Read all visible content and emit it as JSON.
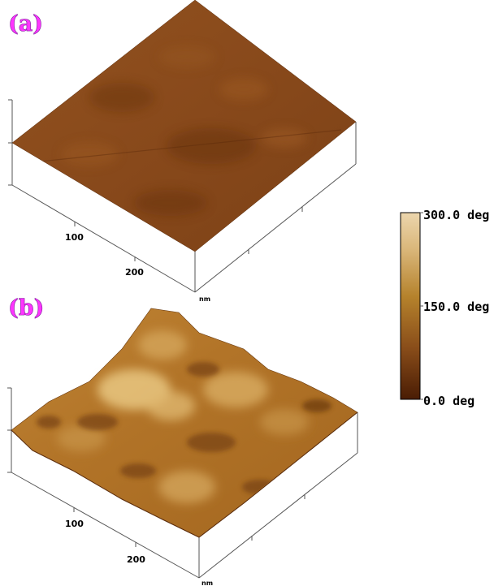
{
  "panels": [
    {
      "label": "(a)",
      "axis_ticks": [
        "100",
        "200"
      ],
      "unit": "nm",
      "surface": "flat",
      "colors": {
        "base": "#8a4a1c",
        "dark": "#5e2e0c",
        "light": "#a25f2c"
      }
    },
    {
      "label": "(b)",
      "axis_ticks": [
        "100",
        "200"
      ],
      "unit": "nm",
      "surface": "rough",
      "colors": {
        "base": "#b87a2c",
        "dark": "#6e3c0e",
        "light": "#e6c27c"
      }
    }
  ],
  "colorbar": {
    "labels": [
      "300.0 deg",
      "150.0 deg",
      "0.0 deg"
    ],
    "range": [
      0,
      300
    ],
    "unit": "deg",
    "gradient": [
      "#4a1c04",
      "#8a4e1a",
      "#b5822c",
      "#d9b679",
      "#ecd6ad"
    ]
  }
}
